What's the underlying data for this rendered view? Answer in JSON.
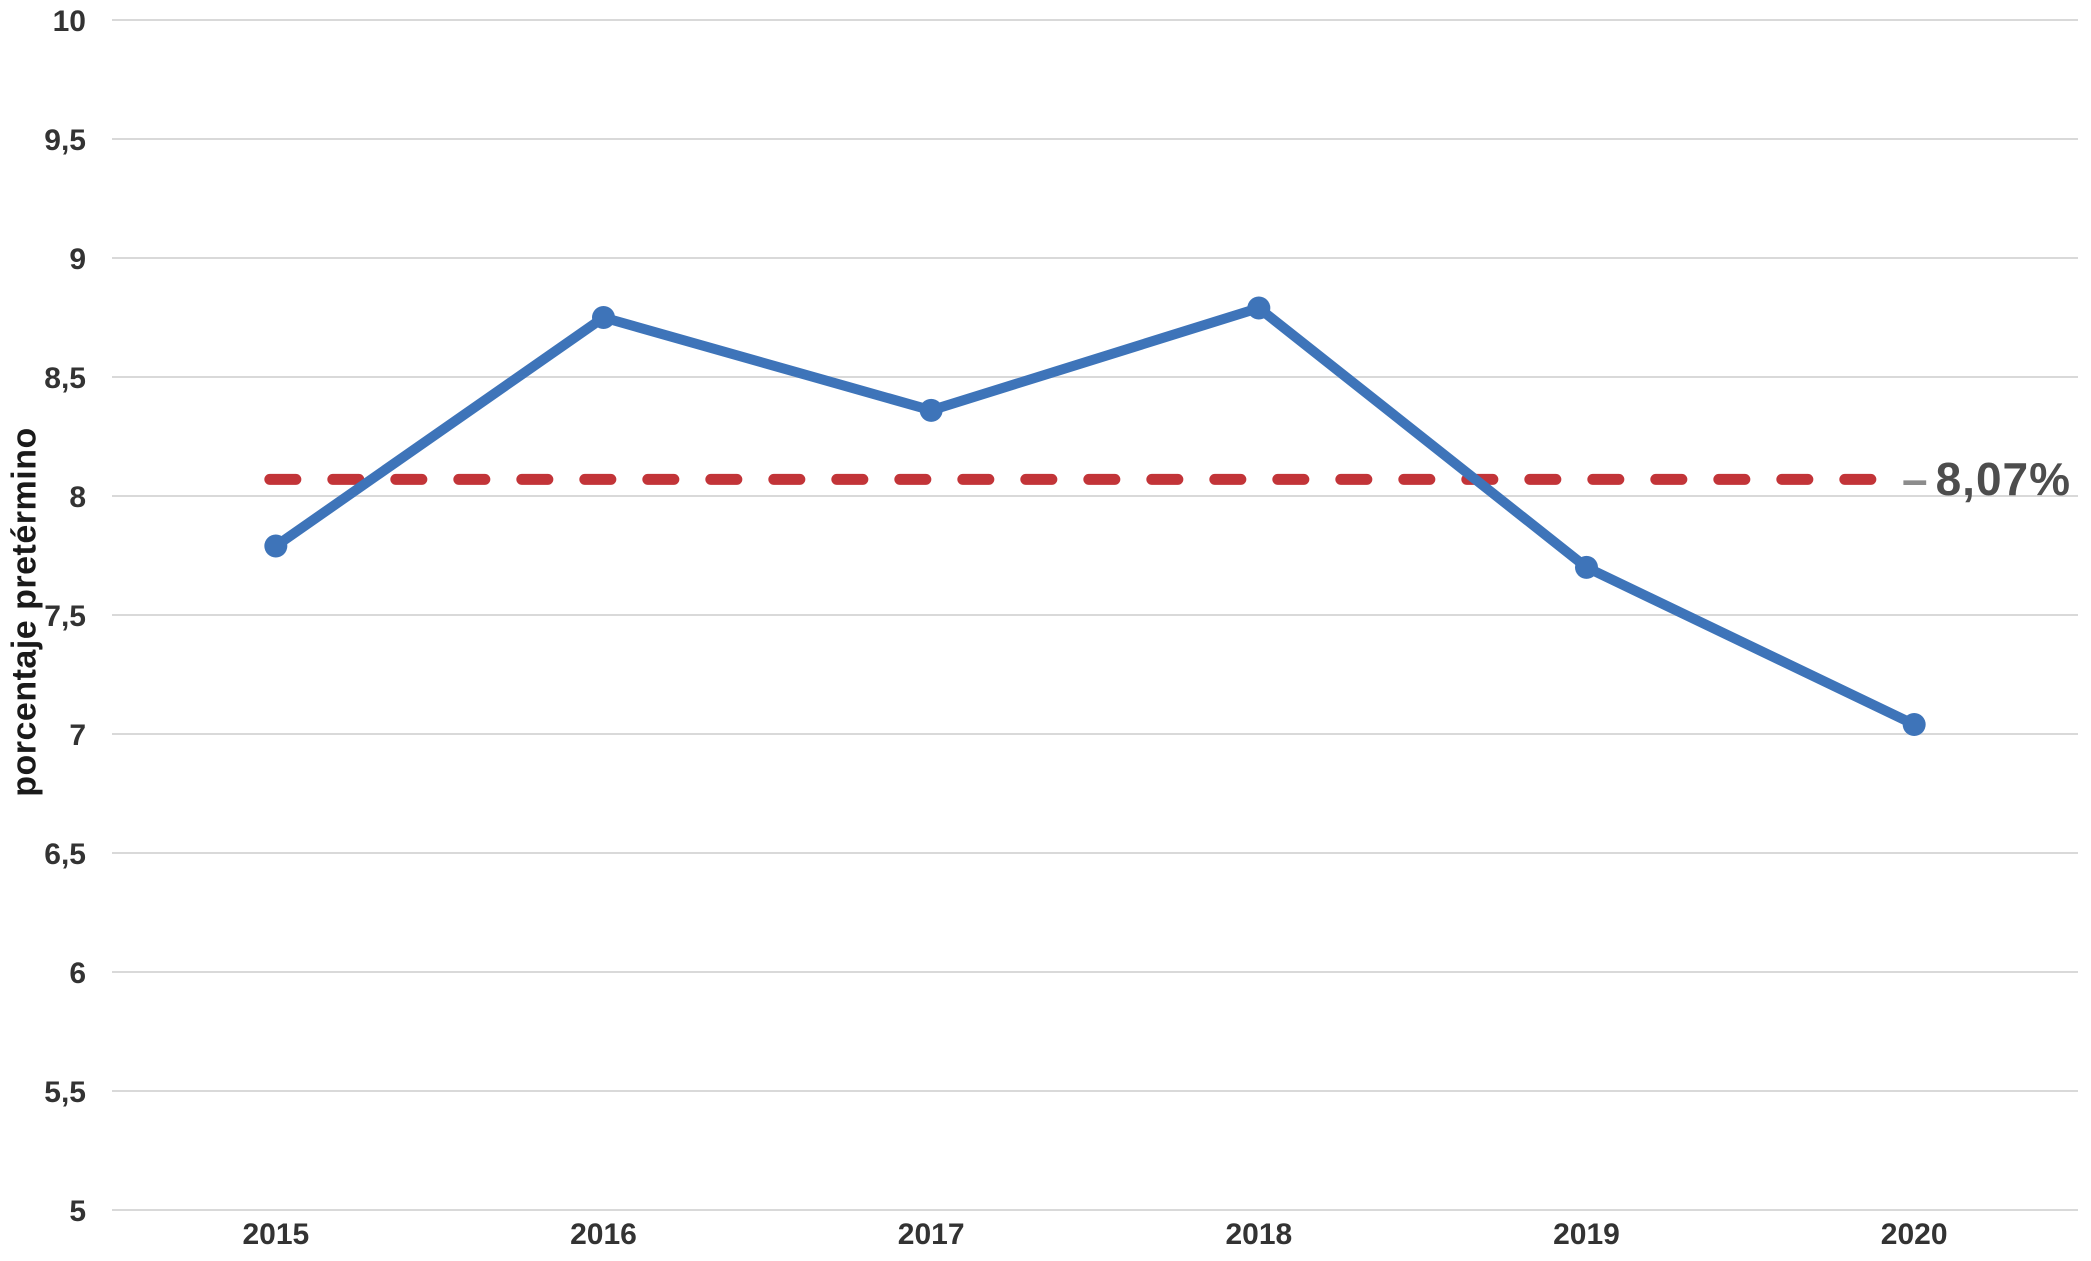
{
  "chart_data": {
    "type": "line",
    "title": "",
    "xlabel": "",
    "ylabel": "porcentaje pretérmino",
    "categories": [
      "2015",
      "2016",
      "2017",
      "2018",
      "2019",
      "2020"
    ],
    "series": [
      {
        "name": "porcentaje pretérmino",
        "values": [
          7.79,
          8.75,
          8.36,
          8.79,
          7.7,
          7.04
        ],
        "color": "#3E74B9",
        "marker": "circle"
      }
    ],
    "reference_line": {
      "value": 8.07,
      "label": "8,07%",
      "label_prefix": "–",
      "color": "#C23438",
      "style": "dashed"
    },
    "ylim": [
      5,
      10
    ],
    "ytick_step": 0.5,
    "ytick_labels": [
      "5",
      "5,5",
      "6",
      "6,5",
      "7",
      "7,5",
      "8",
      "8,5",
      "9",
      "9,5",
      "10"
    ],
    "grid": "horizontal-only",
    "legend": "none",
    "colors": {
      "gridline": "#d9d9d9",
      "tick_text": "#333333",
      "annotation_text": "#4d4d4d"
    }
  }
}
